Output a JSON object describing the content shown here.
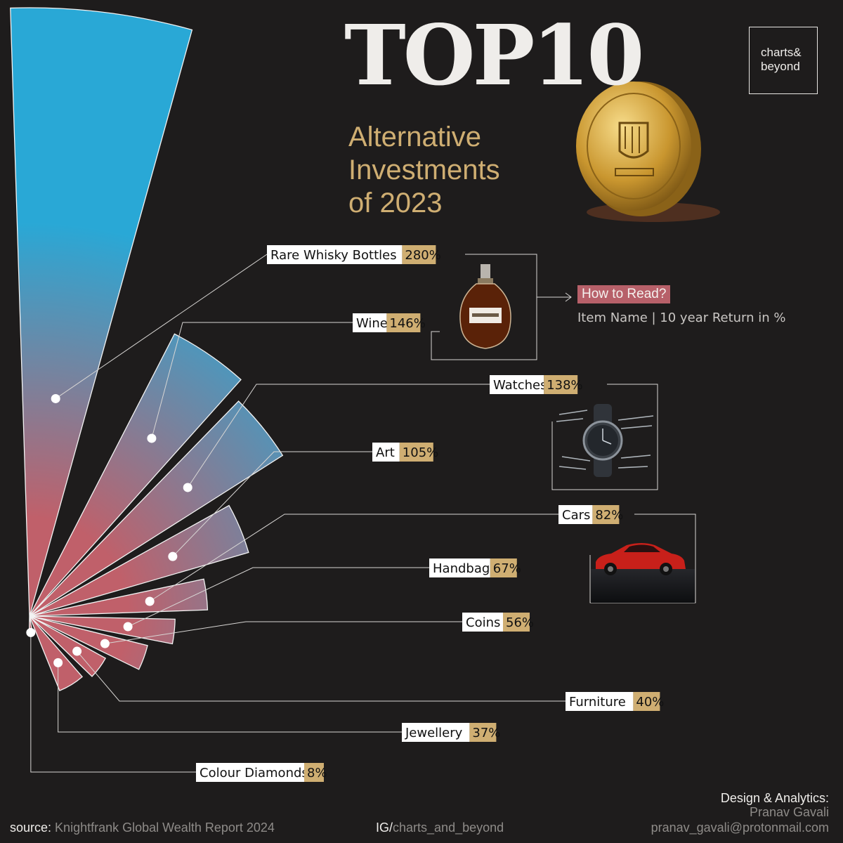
{
  "header": {
    "title": "TOP10",
    "subtitle": [
      "Alternative",
      "Investments",
      "of 2023"
    ],
    "brand_line1": "charts&",
    "brand_line2": "beyond"
  },
  "legend": {
    "how_to_read": "How to Read?",
    "format": "Item Name | 10 year Return in %"
  },
  "footer": {
    "source_label": "source:",
    "source_value": "Knightfrank Global Wealth Report 2024",
    "ig_label": "IG/",
    "ig_value": "charts_and_beyond",
    "credit_heading": "Design & Analytics:",
    "credit_name": "Pranav Gavali",
    "credit_email": "pranav_gavali@protonmail.com"
  },
  "colors": {
    "background": "#1e1c1c",
    "wedge_outer": "#29a8d6",
    "wedge_inner": "#c0606a",
    "value_tag": "#cfae72",
    "accent_gold": "#cfae72",
    "how_to_read_bg": "#b76069"
  },
  "icons": [
    "whisky-bottle-photo",
    "watch-photo",
    "red-car-photo",
    "gold-coin-photo"
  ],
  "chart_data": {
    "type": "radial-bar",
    "unit": "%",
    "categories": [
      "Rare Whisky Bottles",
      "Wine",
      "Watches",
      "Art",
      "Cars",
      "Handbags",
      "Coins",
      "Furniture",
      "Jewellery",
      "Colour Diamonds"
    ],
    "values": [
      280,
      146,
      138,
      105,
      82,
      67,
      56,
      40,
      37,
      8
    ],
    "value_labels": [
      "280%",
      "146%",
      "138%",
      "105%",
      "82%",
      "67%",
      "56%",
      "40%",
      "37%",
      "8%"
    ]
  }
}
